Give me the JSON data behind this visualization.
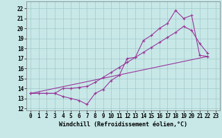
{
  "background_color": "#c8e8e8",
  "grid_color": "#a0c8c8",
  "line_color": "#993399",
  "xlim": [
    -0.5,
    23.5
  ],
  "ylim": [
    11.8,
    22.7
  ],
  "yticks": [
    12,
    13,
    14,
    15,
    16,
    17,
    18,
    19,
    20,
    21,
    22
  ],
  "xticks": [
    0,
    1,
    2,
    3,
    4,
    5,
    6,
    7,
    8,
    9,
    10,
    11,
    12,
    13,
    14,
    15,
    16,
    17,
    18,
    19,
    20,
    21,
    22,
    23
  ],
  "line1_x": [
    0,
    1,
    2,
    3,
    4,
    5,
    6,
    7,
    8,
    9,
    10,
    11,
    12,
    13,
    14,
    15,
    16,
    17,
    18,
    19,
    20,
    21,
    22
  ],
  "line1_y": [
    13.5,
    13.5,
    13.5,
    13.5,
    13.2,
    13.0,
    12.8,
    12.4,
    13.5,
    13.9,
    14.8,
    15.3,
    17.0,
    17.1,
    18.8,
    19.3,
    20.0,
    20.5,
    21.8,
    21.0,
    21.3,
    17.3,
    17.2
  ],
  "line2_x": [
    0,
    1,
    2,
    3,
    4,
    5,
    6,
    7,
    8,
    9,
    10,
    11,
    12,
    13,
    14,
    15,
    16,
    17,
    18,
    19,
    20,
    21,
    22
  ],
  "line2_y": [
    13.5,
    13.5,
    13.5,
    13.5,
    14.0,
    14.0,
    14.1,
    14.2,
    14.6,
    15.1,
    15.6,
    16.1,
    16.6,
    17.1,
    17.6,
    18.1,
    18.6,
    19.1,
    19.6,
    20.2,
    19.8,
    18.5,
    17.5
  ],
  "line3_x": [
    0,
    22
  ],
  "line3_y": [
    13.5,
    17.2
  ],
  "xlabel": "Windchill (Refroidissement éolien,°C)",
  "markersize": 2.5,
  "linewidth": 0.8,
  "tick_fontsize": 5.5,
  "xlabel_fontsize": 6.0
}
